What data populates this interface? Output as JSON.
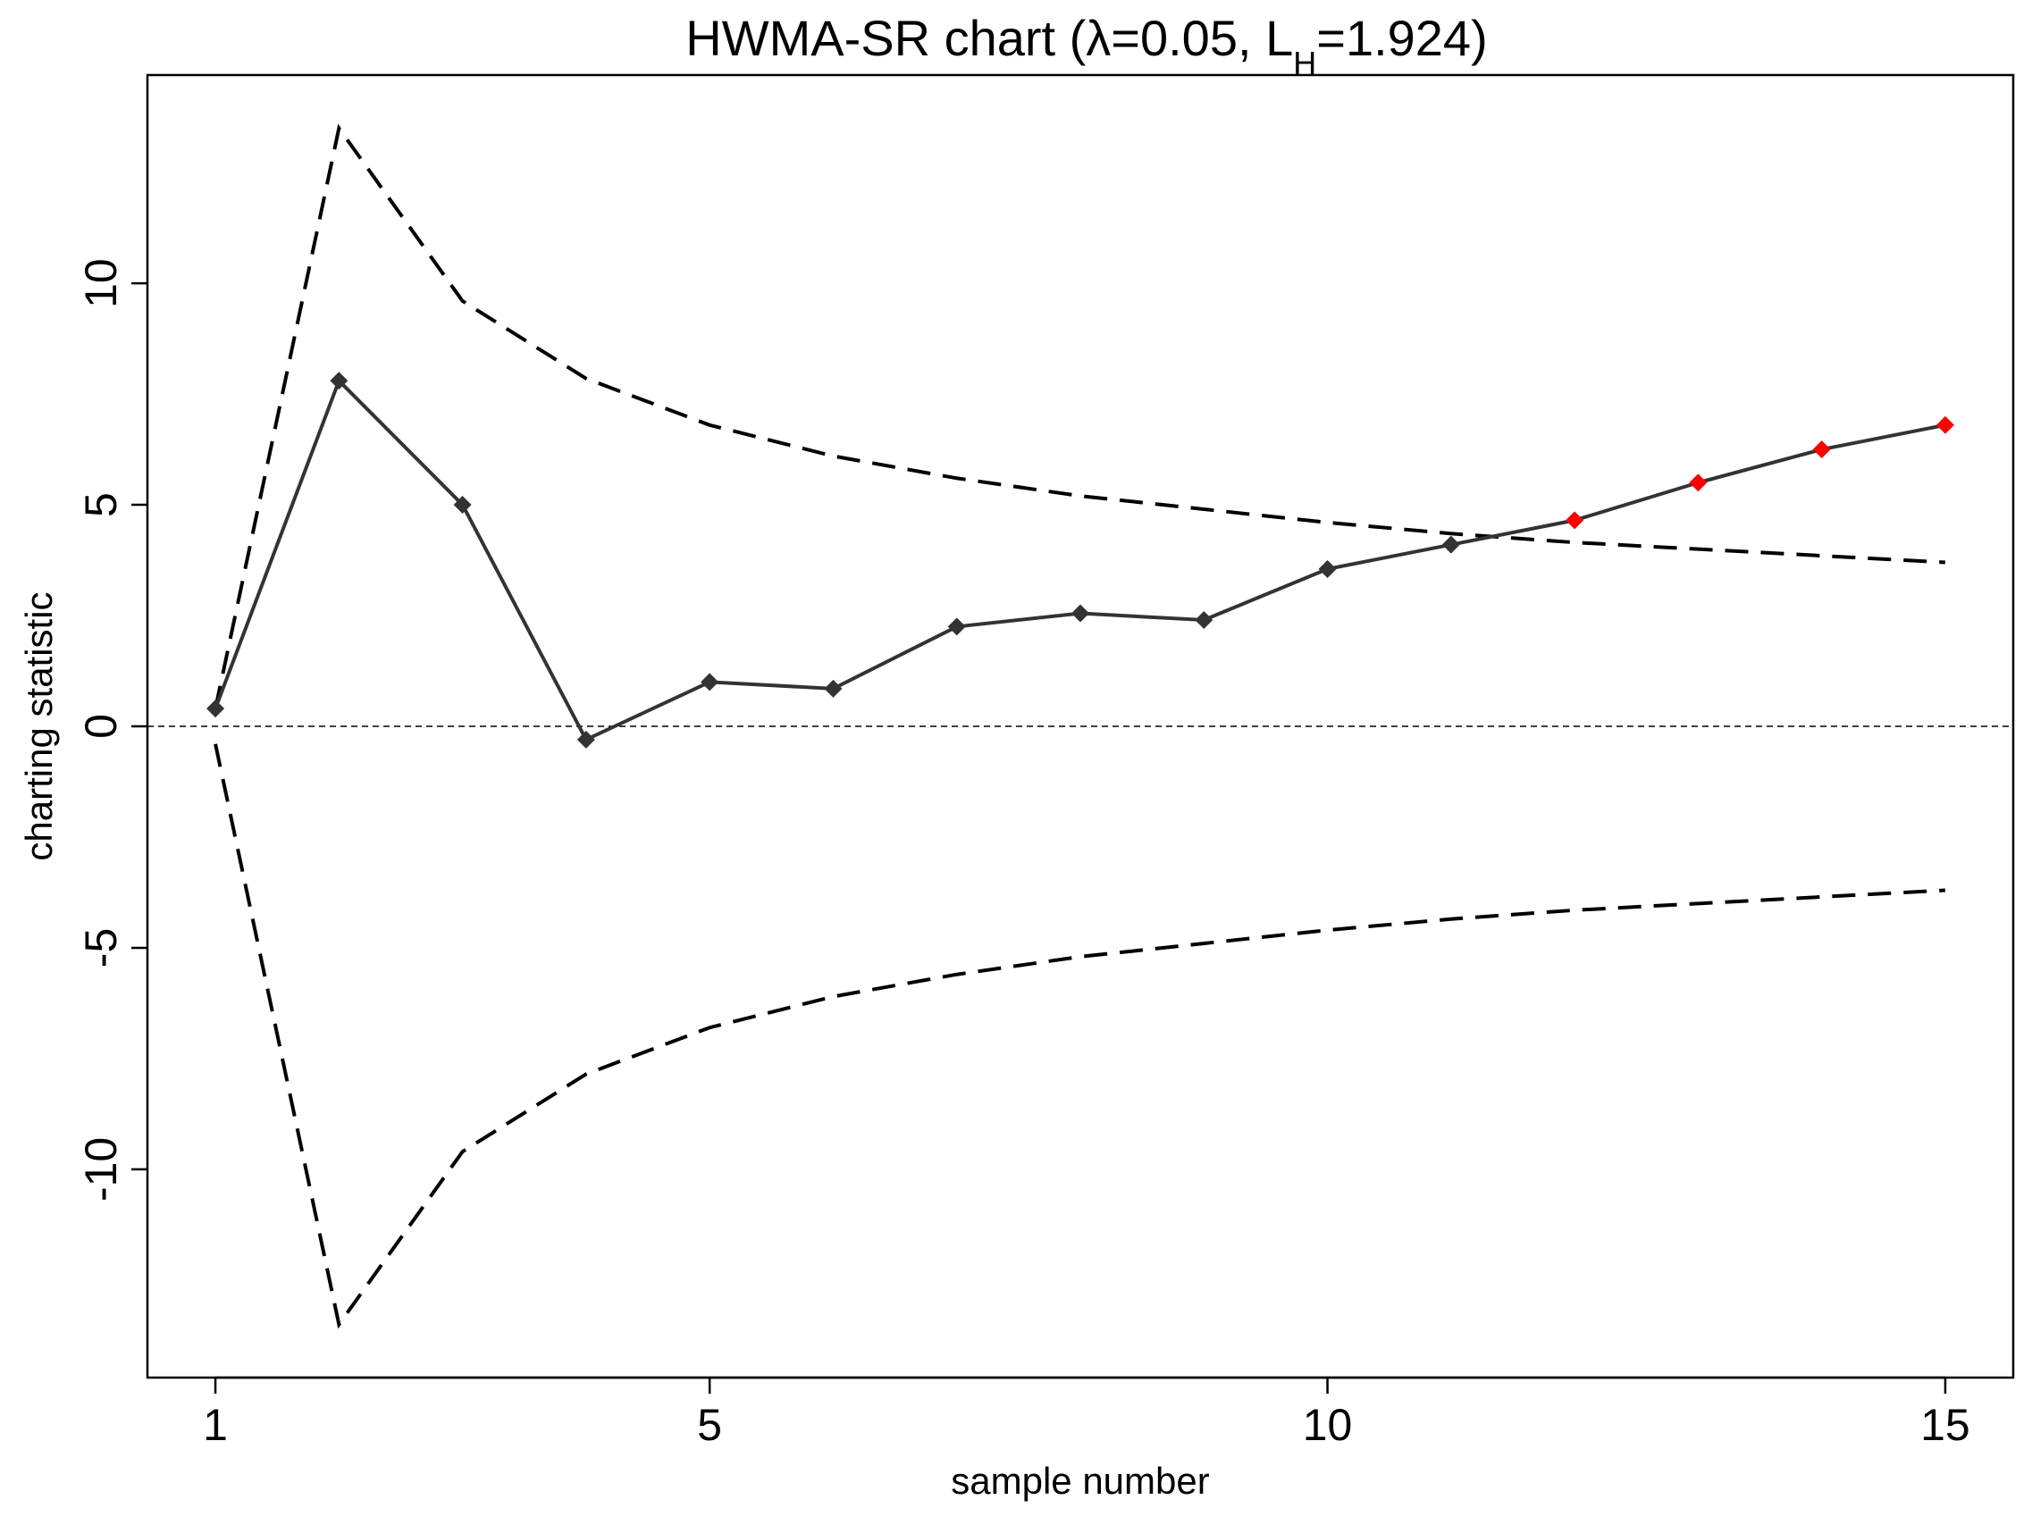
{
  "chart_data": {
    "type": "line",
    "title": "HWMA-SR chart (λ=0.05, L",
    "title_sub": "H",
    "title_tail": "=1.924)",
    "xlabel": "sample number",
    "ylabel": "charting statistic",
    "xlim": [
      0.45,
      15.55
    ],
    "ylim": [
      -14.7,
      14.7
    ],
    "x_ticks": [
      1,
      5,
      10,
      15
    ],
    "x_tick_labels": [
      "1",
      "5",
      "10",
      "15"
    ],
    "y_ticks": [
      -10,
      -5,
      0,
      5,
      10
    ],
    "y_tick_labels": [
      "-10",
      "-5",
      "0",
      "5",
      "10"
    ],
    "center_line": 0,
    "x": [
      1,
      2,
      3,
      4,
      5,
      6,
      7,
      8,
      9,
      10,
      11,
      12,
      13,
      14,
      15
    ],
    "series": [
      {
        "values": [
          0.4,
          7.8,
          5.0,
          -0.3,
          1.0,
          0.85,
          2.25,
          2.55,
          2.4,
          3.55,
          4.1,
          4.65,
          5.5,
          6.25,
          6.8
        ],
        "signal": [
          false,
          false,
          false,
          false,
          false,
          false,
          false,
          false,
          false,
          false,
          false,
          true,
          true,
          true,
          true
        ]
      }
    ],
    "ucl": [
      0.4,
      13.5,
      9.6,
      7.85,
      6.8,
      6.1,
      5.6,
      5.2,
      4.9,
      4.6,
      4.35,
      4.15,
      4.0,
      3.85,
      3.7
    ],
    "lcl": [
      -0.4,
      -13.5,
      -9.6,
      -7.85,
      -6.8,
      -6.1,
      -5.6,
      -5.2,
      -4.9,
      -4.6,
      -4.35,
      -4.15,
      -4.0,
      -3.85,
      -3.7
    ],
    "grid": false,
    "colors": {
      "line": "#333333",
      "in_control_marker": "#333333",
      "signal_marker": "#ff0000",
      "limits": "#000000"
    }
  }
}
